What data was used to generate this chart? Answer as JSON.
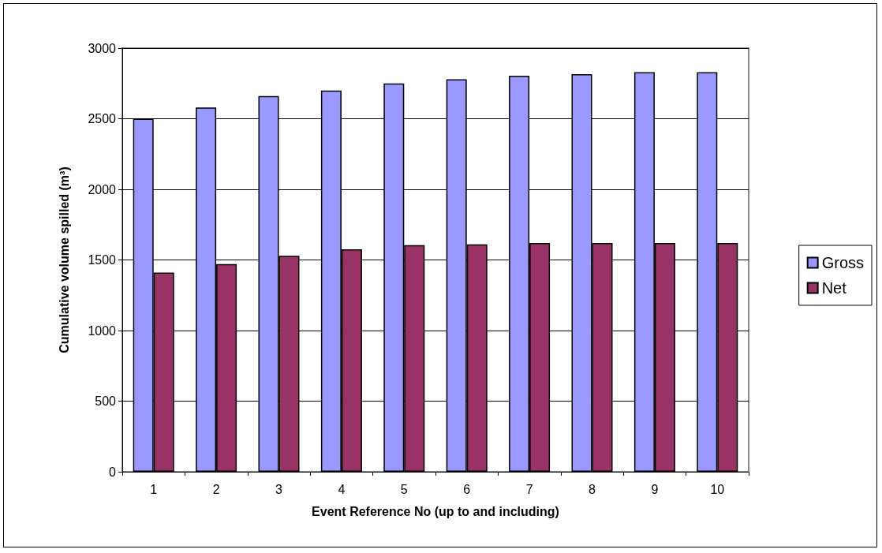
{
  "chart_data": {
    "type": "bar",
    "xlabel": "Event Reference No (up to and including)",
    "ylabel": "Cumulative volume spilled (m³)",
    "categories": [
      "1",
      "2",
      "3",
      "4",
      "5",
      "6",
      "7",
      "8",
      "9",
      "10"
    ],
    "series": [
      {
        "name": "Gross",
        "color": "#9999ff",
        "values": [
          2500,
          2580,
          2660,
          2700,
          2750,
          2780,
          2805,
          2815,
          2830,
          2830
        ]
      },
      {
        "name": "Net",
        "color": "#993366",
        "values": [
          1410,
          1470,
          1530,
          1575,
          1605,
          1610,
          1620,
          1620,
          1620,
          1620
        ]
      }
    ],
    "ylim": [
      0,
      3000
    ],
    "yticks": [
      0,
      500,
      1000,
      1500,
      2000,
      2500,
      3000
    ],
    "grid": "y",
    "legend": "right"
  }
}
